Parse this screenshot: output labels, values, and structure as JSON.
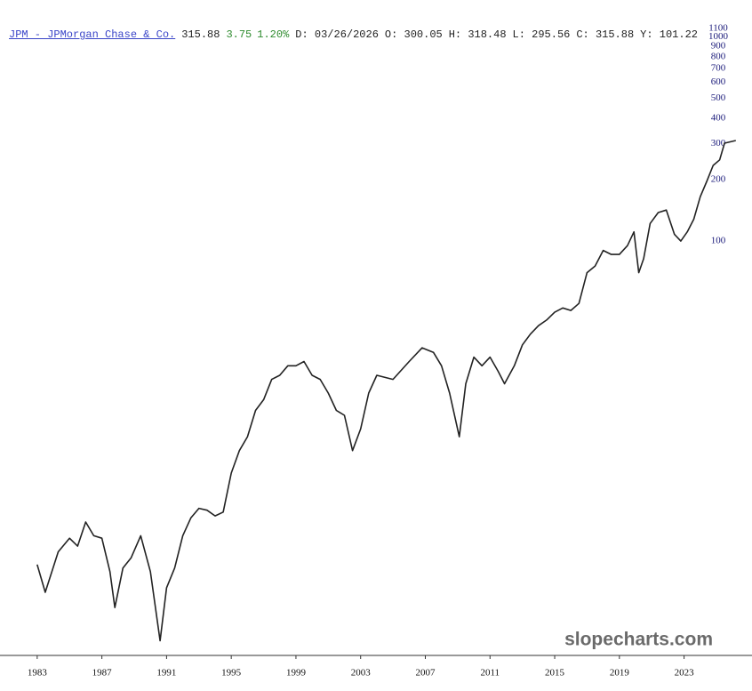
{
  "chart_data": {
    "type": "line",
    "header": {
      "symbol": "JPM - JPMorgan Chase & Co.",
      "last": "315.88",
      "change": "3.75",
      "change_pct": "1.20%",
      "items": [
        "D: 03/26/2026",
        "O: 300.05",
        "H: 318.48",
        "L: 295.56",
        "C: 315.88",
        "Y: 101.22"
      ]
    },
    "watermark": "slopecharts.com",
    "log_y": true,
    "color": "#222222",
    "x": [
      1983.0,
      1983.5,
      1984.3,
      1985.0,
      1985.5,
      1986.0,
      1986.5,
      1987.0,
      1987.5,
      1987.8,
      1988.3,
      1988.8,
      1989.4,
      1990.0,
      1990.6,
      1991.0,
      1991.5,
      1992.0,
      1992.5,
      1993.0,
      1993.5,
      1994.0,
      1994.5,
      1995.0,
      1995.5,
      1996.0,
      1996.5,
      1997.0,
      1997.5,
      1998.0,
      1998.5,
      1999.0,
      1999.5,
      2000.0,
      2000.5,
      2001.0,
      2001.5,
      2002.0,
      2002.5,
      2003.0,
      2003.5,
      2004.0,
      2005.0,
      2006.0,
      2006.8,
      2007.5,
      2008.0,
      2008.5,
      2009.1,
      2009.5,
      2010.0,
      2010.5,
      2011.0,
      2011.5,
      2011.9,
      2012.5,
      2013.0,
      2013.5,
      2014.0,
      2014.5,
      2015.0,
      2015.5,
      2016.0,
      2016.5,
      2017.0,
      2017.5,
      2018.0,
      2018.5,
      2019.0,
      2019.5,
      2019.9,
      2020.2,
      2020.5,
      2020.9,
      2021.4,
      2021.9,
      2022.4,
      2022.8,
      2023.2,
      2023.6,
      2024.0,
      2024.4,
      2024.8,
      2025.2,
      2025.5,
      2026.2
    ],
    "values": [
      2.6,
      1.9,
      3.0,
      3.5,
      3.2,
      4.2,
      3.6,
      3.5,
      2.4,
      1.6,
      2.5,
      2.8,
      3.6,
      2.4,
      1.1,
      2.0,
      2.5,
      3.6,
      4.4,
      4.9,
      4.8,
      4.5,
      4.7,
      7.3,
      9.4,
      11,
      14.8,
      16.7,
      21,
      22,
      24.5,
      24.5,
      25.7,
      22,
      21,
      18,
      14.8,
      14,
      9.4,
      12,
      18,
      22,
      21,
      25.7,
      30,
      28.5,
      24.5,
      18,
      11,
      20,
      27,
      24.5,
      27,
      23,
      20,
      24.5,
      31,
      35,
      38.5,
      41,
      44.8,
      47,
      45.7,
      49.5,
      70,
      75.5,
      90,
      86,
      86,
      95,
      111,
      70,
      82,
      122,
      138,
      142,
      108,
      100,
      111,
      128,
      165,
      196,
      235,
      250,
      302,
      311
    ],
    "xlim": [
      1980.7,
      2027.2
    ],
    "xticks": [
      1983,
      1987,
      1991,
      1995,
      1999,
      2003,
      2007,
      2011,
      2015,
      2019,
      2023
    ],
    "ylim": [
      1,
      1170
    ],
    "yticks": [
      1100,
      1000,
      900,
      800,
      700,
      600,
      500,
      400,
      300,
      200,
      100
    ]
  }
}
